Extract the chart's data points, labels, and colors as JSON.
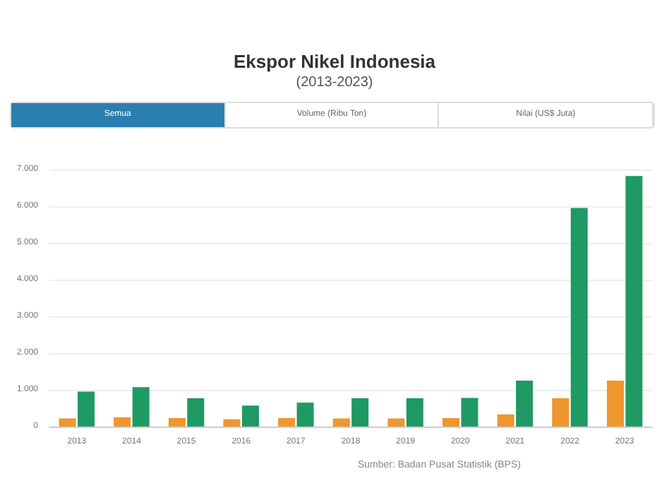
{
  "chart_data": {
    "type": "bar",
    "title": "Ekspor Nikel Indonesia",
    "subtitle": "(2013-2023)",
    "categories": [
      "2013",
      "2014",
      "2015",
      "2016",
      "2017",
      "2018",
      "2019",
      "2020",
      "2021",
      "2022",
      "2023"
    ],
    "series": [
      {
        "color": "#f0962e",
        "values": [
          220,
          250,
          230,
          200,
          230,
          220,
          220,
          230,
          330,
          770,
          1250
        ]
      },
      {
        "color": "#1f9a64",
        "values": [
          950,
          1070,
          770,
          570,
          650,
          770,
          770,
          780,
          1250,
          5950,
          6820
        ]
      }
    ],
    "ylim": [
      0,
      7000
    ],
    "yticks": [
      0,
      {
        "value": 1000,
        "label": "1.000"
      },
      {
        "value": 2000,
        "label": "2.000"
      },
      {
        "value": 3000,
        "label": "3.000"
      },
      {
        "value": 4000,
        "label": "4.000"
      },
      {
        "value": 5000,
        "label": "5.000"
      },
      {
        "value": 6000,
        "label": "6.000"
      },
      {
        "value": 7000,
        "label": "7.000"
      }
    ],
    "grid": "y",
    "annotations": [
      "Semua",
      "Volume (Ribu Ton)",
      "Nilai (US$ Juta)",
      "Sumber: Badan Pusat Statistik (BPS)"
    ]
  }
}
